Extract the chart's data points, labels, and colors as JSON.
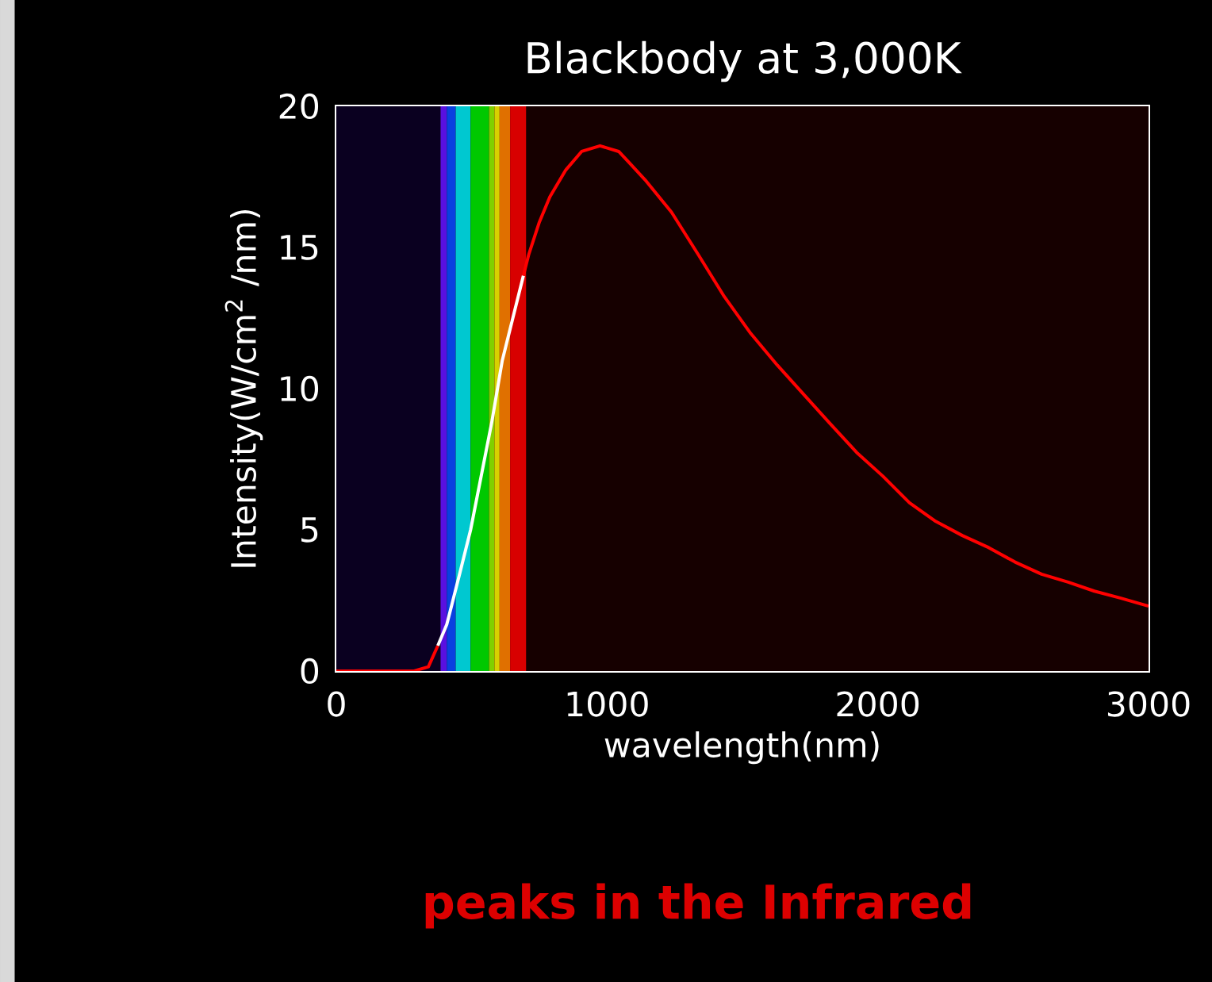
{
  "chart_data": {
    "type": "line",
    "title": "Blackbody at 3,000K",
    "xlabel": "wavelength(nm)",
    "ylabel": "Intensity(W/cm$^{2}$ /nm)",
    "annotations": [
      "peaks in the Infrared"
    ],
    "xlim": [
      0,
      3000
    ],
    "ylim": [
      0,
      20
    ],
    "xticks": [
      0,
      1000,
      2000,
      3000
    ],
    "yticks": [
      0,
      5,
      10,
      15,
      20
    ],
    "marker": "none",
    "line_style": "solid",
    "bands": [
      {
        "axis": "x",
        "from": 0,
        "to": 385,
        "color": "#0a0020"
      },
      {
        "axis": "x",
        "from": 385,
        "to": 408,
        "color": "#5a10e0"
      },
      {
        "axis": "x",
        "from": 408,
        "to": 441,
        "color": "#0a40e0"
      },
      {
        "axis": "x",
        "from": 441,
        "to": 496,
        "color": "#00c8d0"
      },
      {
        "axis": "x",
        "from": 496,
        "to": 564,
        "color": "#00c800"
      },
      {
        "axis": "x",
        "from": 564,
        "to": 584,
        "color": "#80d000"
      },
      {
        "axis": "x",
        "from": 584,
        "to": 603,
        "color": "#d8d000"
      },
      {
        "axis": "x",
        "from": 603,
        "to": 642,
        "color": "#e07000"
      },
      {
        "axis": "x",
        "from": 642,
        "to": 701,
        "color": "#d80000"
      }
    ],
    "series": [
      {
        "color": "#ff0000",
        "x": [
          0,
          287,
          340,
          375
        ],
        "values": [
          0,
          0,
          0.15,
          0.9
        ]
      },
      {
        "color": "#ffffff",
        "x": [
          375,
          408,
          428,
          457,
          496,
          535,
          574,
          613,
          652,
          691
        ],
        "values": [
          0.9,
          1.65,
          2.4,
          3.5,
          5.0,
          6.9,
          8.8,
          11.0,
          12.5,
          14.0
        ]
      },
      {
        "color": "#ff0000",
        "x": [
          691,
          711,
          750,
          789,
          848,
          906,
          974,
          1043,
          1082,
          1140,
          1238,
          1336,
          1433,
          1531,
          1629,
          1726,
          1824,
          1922,
          2019,
          2117,
          2214,
          2312,
          2410,
          2507,
          2605,
          2703,
          2800,
          2898,
          3000
        ],
        "values": [
          14.0,
          14.76,
          15.9,
          16.8,
          17.75,
          18.4,
          18.6,
          18.4,
          18.0,
          17.4,
          16.25,
          14.76,
          13.26,
          11.95,
          10.83,
          9.8,
          8.76,
          7.74,
          6.9,
          5.96,
          5.3,
          4.8,
          4.37,
          3.86,
          3.43,
          3.15,
          2.83,
          2.58,
          2.3
        ]
      }
    ]
  }
}
